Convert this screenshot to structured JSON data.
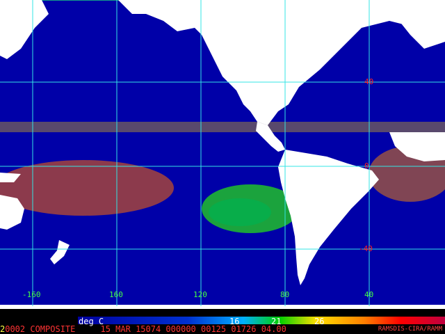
{
  "colors": {
    "land": "#ffffff",
    "grid": "#33e5e5",
    "cold": "#0000a8",
    "cool": "#0a3cd8",
    "mid": "#00c8ff",
    "green": "#22cc22",
    "warm": "#ffd200",
    "hot": "#ff6a00",
    "hottest": "#e83800"
  },
  "grid": {
    "longitude_labels": [
      "-160",
      "160",
      "120",
      "80",
      "40"
    ],
    "latitude_labels": [
      "40",
      "0",
      "-40"
    ]
  },
  "colorbar": {
    "unit_label": "deg C",
    "ticks": [
      "16",
      "21",
      "26"
    ]
  },
  "footer": {
    "prefix": "2",
    "text": "0002 COMPOSITE     15 MAR 15074 000000 00125 01726 04.00",
    "credit": "RAMSDIS-CIRA/RAMM"
  }
}
